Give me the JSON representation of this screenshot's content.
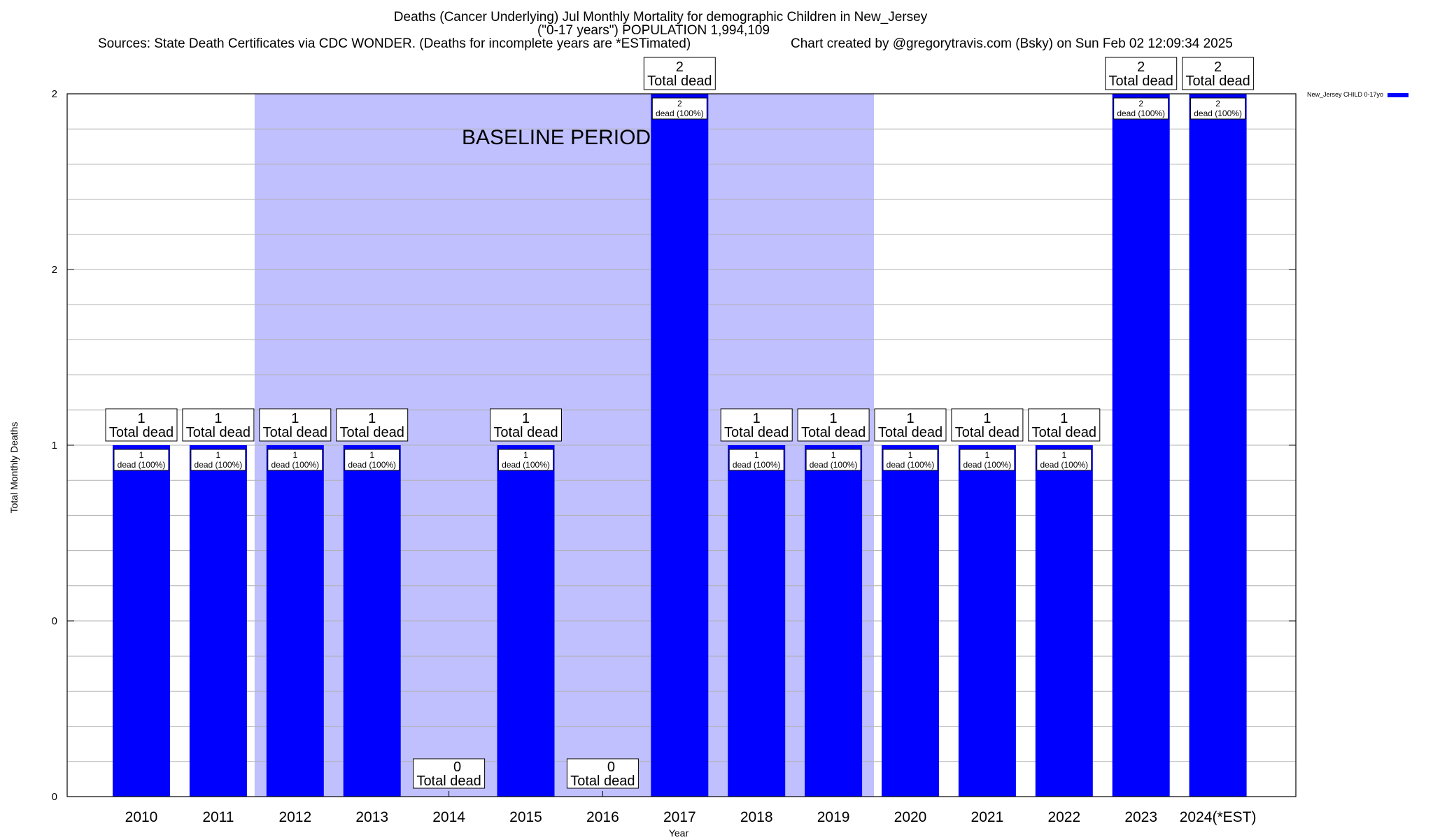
{
  "chart_data": {
    "type": "bar",
    "title_lines": [
      "Deaths (Cancer Underlying) Jul Monthly Mortality for demographic Children in New_Jersey",
      "(\"0-17 years\") POPULATION 1,994,109"
    ],
    "sources_text": "Sources: State Death Certificates via CDC WONDER. (Deaths for incomplete years are *ESTimated)",
    "credit_text": "Chart created by @gregorytravis.com (Bsky) on Sun Feb 02 12:09:34 2025",
    "xlabel": "Year",
    "ylabel": "Total Monthly Deaths",
    "ylim": [
      0,
      2
    ],
    "y_tick_labels": [
      "0",
      "0",
      "1",
      "2",
      "2"
    ],
    "categories": [
      "2010",
      "2011",
      "2012",
      "2013",
      "2014",
      "2015",
      "2016",
      "2017",
      "2018",
      "2019",
      "2020",
      "2021",
      "2022",
      "2023",
      "2024(*EST)"
    ],
    "series": [
      {
        "name": "New_Jersey CHILD 0-17yo",
        "color": "#0000ff",
        "values": [
          1,
          1,
          1,
          1,
          0,
          1,
          0,
          2,
          1,
          1,
          1,
          1,
          1,
          2,
          2
        ]
      }
    ],
    "total_label_suffix": "Total dead",
    "inner_label_suffix": "dead (100%)",
    "baseline": {
      "label": "BASELINE PERIOD",
      "from_category": "2012",
      "to_category": "2019",
      "color": "#c0c0ff"
    },
    "grid": true
  }
}
